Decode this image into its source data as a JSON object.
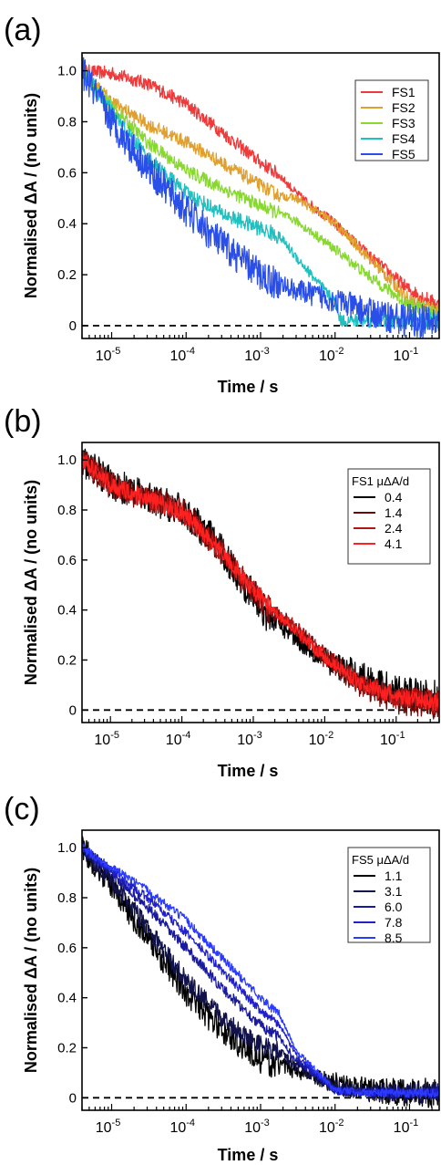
{
  "figure": {
    "panels": [
      {
        "label": "(a)",
        "ylabel": "Normalised ΔA / (no units)",
        "xlabel": "Time / s",
        "legend_title": "",
        "legend_position": "top-right",
        "xscale": "log",
        "xlim": [
          4e-06,
          0.25
        ],
        "ylim": [
          -0.05,
          1.07
        ],
        "yticks": [
          {
            "v": 0,
            "t": "0"
          },
          {
            "v": 0.2,
            "t": "0.2"
          },
          {
            "v": 0.4,
            "t": "0.4"
          },
          {
            "v": 0.6,
            "t": "0.6"
          },
          {
            "v": 0.8,
            "t": "0.8"
          },
          {
            "v": 1.0,
            "t": "1.0"
          }
        ],
        "xticks": [
          {
            "e": -5,
            "t": "10",
            "sup": "-5"
          },
          {
            "e": -4,
            "t": "10",
            "sup": "-4"
          },
          {
            "e": -3,
            "t": "10",
            "sup": "-3"
          },
          {
            "e": -2,
            "t": "10",
            "sup": "-2"
          },
          {
            "e": -1,
            "t": "10",
            "sup": "-1"
          }
        ],
        "zero_line": "dashed"
      },
      {
        "label": "(b)",
        "ylabel": "Normalised ΔA / (no units)",
        "xlabel": "Time / s",
        "legend_title": "FS1 μΔA/d",
        "legend_position": "top-right",
        "xscale": "log",
        "xlim": [
          4e-06,
          0.4
        ],
        "ylim": [
          -0.05,
          1.07
        ],
        "yticks": [
          {
            "v": 0,
            "t": "0"
          },
          {
            "v": 0.2,
            "t": "0.2"
          },
          {
            "v": 0.4,
            "t": "0.4"
          },
          {
            "v": 0.6,
            "t": "0.6"
          },
          {
            "v": 0.8,
            "t": "0.8"
          },
          {
            "v": 1.0,
            "t": "1.0"
          }
        ],
        "xticks": [
          {
            "e": -5,
            "t": "10",
            "sup": "-5"
          },
          {
            "e": -4,
            "t": "10",
            "sup": "-4"
          },
          {
            "e": -3,
            "t": "10",
            "sup": "-3"
          },
          {
            "e": -2,
            "t": "10",
            "sup": "-2"
          },
          {
            "e": -1,
            "t": "10",
            "sup": "-1"
          }
        ],
        "zero_line": "dashed"
      },
      {
        "label": "(c)",
        "ylabel": "Normalised ΔA / (no units)",
        "xlabel": "Time / s",
        "legend_title": "FS5 μΔA/d",
        "legend_position": "top-right",
        "xscale": "log",
        "xlim": [
          4e-06,
          0.25
        ],
        "ylim": [
          -0.05,
          1.07
        ],
        "yticks": [
          {
            "v": 0,
            "t": "0"
          },
          {
            "v": 0.2,
            "t": "0.2"
          },
          {
            "v": 0.4,
            "t": "0.4"
          },
          {
            "v": 0.6,
            "t": "0.6"
          },
          {
            "v": 0.8,
            "t": "0.8"
          },
          {
            "v": 1.0,
            "t": "1.0"
          }
        ],
        "xticks": [
          {
            "e": -5,
            "t": "10",
            "sup": "-5"
          },
          {
            "e": -4,
            "t": "10",
            "sup": "-4"
          },
          {
            "e": -3,
            "t": "10",
            "sup": "-3"
          },
          {
            "e": -2,
            "t": "10",
            "sup": "-2"
          },
          {
            "e": -1,
            "t": "10",
            "sup": "-1"
          }
        ],
        "zero_line": "dashed"
      }
    ]
  },
  "chart_data": [
    {
      "type": "line",
      "title": "(a)",
      "xlabel": "Time / s",
      "ylabel": "Normalised ΔA / (no units)",
      "xscale": "log",
      "xlim": [
        4e-06,
        0.25
      ],
      "ylim": [
        -0.05,
        1.07
      ],
      "grid": false,
      "legend": "top-right",
      "series": [
        {
          "name": "FS1",
          "color": "#ee3a3a",
          "noise": 0.012,
          "x": [
            4e-06,
            1e-05,
            3e-05,
            0.0001,
            0.0003,
            0.001,
            0.0018,
            0.003,
            0.01,
            0.03,
            0.1,
            0.25
          ],
          "y": [
            1.0,
            0.99,
            0.95,
            0.87,
            0.76,
            0.64,
            0.59,
            0.52,
            0.4,
            0.27,
            0.14,
            0.08
          ]
        },
        {
          "name": "FS2",
          "color": "#e0a030",
          "noise": 0.012,
          "x": [
            4e-06,
            1e-05,
            3e-05,
            0.0001,
            0.0003,
            0.001,
            0.0018,
            0.003,
            0.01,
            0.03,
            0.1,
            0.25
          ],
          "y": [
            1.0,
            0.88,
            0.79,
            0.72,
            0.64,
            0.55,
            0.51,
            0.5,
            0.4,
            0.26,
            0.1,
            0.06
          ]
        },
        {
          "name": "FS3",
          "color": "#88d830",
          "noise": 0.012,
          "x": [
            4e-06,
            1e-05,
            3e-05,
            0.0001,
            0.0003,
            0.001,
            0.0018,
            0.003,
            0.01,
            0.03,
            0.1,
            0.25
          ],
          "y": [
            1.0,
            0.86,
            0.72,
            0.61,
            0.54,
            0.47,
            0.44,
            0.41,
            0.3,
            0.19,
            0.08,
            0.05
          ]
        },
        {
          "name": "FS4",
          "color": "#20c0c0",
          "noise": 0.014,
          "x": [
            4e-06,
            1e-05,
            3e-05,
            0.0001,
            0.0003,
            0.001,
            0.0018,
            0.003,
            0.01,
            0.012,
            0.03,
            0.1,
            0.25
          ],
          "y": [
            1.0,
            0.84,
            0.66,
            0.52,
            0.44,
            0.38,
            0.35,
            0.27,
            0.09,
            0.02,
            0.02,
            0.02,
            0.02
          ]
        },
        {
          "name": "FS5",
          "color": "#2a4ee8",
          "noise": 0.03,
          "x": [
            4e-06,
            1e-05,
            3e-05,
            0.0001,
            0.0003,
            0.001,
            0.0018,
            0.003,
            0.01,
            0.03,
            0.1,
            0.25
          ],
          "y": [
            1.0,
            0.8,
            0.62,
            0.45,
            0.32,
            0.2,
            0.16,
            0.14,
            0.1,
            0.05,
            0.02,
            0.01
          ]
        }
      ]
    },
    {
      "type": "line",
      "title": "(b)",
      "xlabel": "Time / s",
      "ylabel": "Normalised ΔA / (no units)",
      "xscale": "log",
      "xlim": [
        4e-06,
        0.4
      ],
      "ylim": [
        -0.05,
        1.07
      ],
      "grid": false,
      "legend": "top-right",
      "legend_title": "FS1 μΔA/d",
      "series": [
        {
          "name": "0.4",
          "color": "#000000",
          "noise": 0.03,
          "x": [
            4e-06,
            1e-05,
            3e-05,
            0.0001,
            0.0003,
            0.001,
            0.0018,
            0.003,
            0.01,
            0.03,
            0.1,
            0.4
          ],
          "y": [
            1.0,
            0.91,
            0.85,
            0.8,
            0.67,
            0.45,
            0.36,
            0.32,
            0.2,
            0.14,
            0.07,
            0.05
          ]
        },
        {
          "name": "1.4",
          "color": "#6b0a0a",
          "noise": 0.025,
          "x": [
            4e-06,
            1e-05,
            3e-05,
            0.0001,
            0.0003,
            0.001,
            0.0018,
            0.003,
            0.01,
            0.03,
            0.1,
            0.4
          ],
          "y": [
            1.0,
            0.9,
            0.85,
            0.8,
            0.66,
            0.47,
            0.39,
            0.35,
            0.21,
            0.1,
            0.04,
            0.02
          ]
        },
        {
          "name": "2.4",
          "color": "#b01818",
          "noise": 0.02,
          "x": [
            4e-06,
            1e-05,
            3e-05,
            0.0001,
            0.0003,
            0.001,
            0.0018,
            0.003,
            0.01,
            0.03,
            0.1,
            0.4
          ],
          "y": [
            1.0,
            0.9,
            0.85,
            0.79,
            0.66,
            0.48,
            0.4,
            0.36,
            0.22,
            0.11,
            0.05,
            0.03
          ]
        },
        {
          "name": "4.1",
          "color": "#ff2020",
          "noise": 0.015,
          "x": [
            4e-06,
            1e-05,
            3e-05,
            0.0001,
            0.0003,
            0.001,
            0.0018,
            0.003,
            0.01,
            0.03,
            0.1,
            0.4
          ],
          "y": [
            1.0,
            0.9,
            0.85,
            0.79,
            0.66,
            0.48,
            0.4,
            0.35,
            0.21,
            0.11,
            0.05,
            0.03
          ]
        }
      ]
    },
    {
      "type": "line",
      "title": "(c)",
      "xlabel": "Time / s",
      "ylabel": "Normalised ΔA / (no units)",
      "xscale": "log",
      "xlim": [
        4e-06,
        0.25
      ],
      "ylim": [
        -0.05,
        1.07
      ],
      "grid": false,
      "legend": "top-right",
      "legend_title": "FS5 μΔA/d",
      "series": [
        {
          "name": "1.1",
          "color": "#000000",
          "noise": 0.025,
          "x": [
            4e-06,
            1e-05,
            3e-05,
            0.0001,
            0.0003,
            0.001,
            0.0018,
            0.003,
            0.01,
            0.03,
            0.1,
            0.25
          ],
          "y": [
            1.0,
            0.85,
            0.64,
            0.42,
            0.27,
            0.15,
            0.13,
            0.11,
            0.06,
            0.03,
            0.02,
            0.02
          ]
        },
        {
          "name": "3.1",
          "color": "#12124a",
          "noise": 0.018,
          "x": [
            4e-06,
            1e-05,
            3e-05,
            0.0001,
            0.0003,
            0.001,
            0.0018,
            0.003,
            0.01,
            0.03,
            0.1,
            0.25
          ],
          "y": [
            1.0,
            0.87,
            0.68,
            0.47,
            0.32,
            0.21,
            0.18,
            0.13,
            0.04,
            0.02,
            0.02,
            0.02
          ]
        },
        {
          "name": "6.0",
          "color": "#1a1aa0",
          "noise": 0.01,
          "x": [
            4e-06,
            1e-05,
            3e-05,
            0.0001,
            0.0003,
            0.001,
            0.0018,
            0.003,
            0.01,
            0.03,
            0.1,
            0.25
          ],
          "y": [
            1.0,
            0.9,
            0.76,
            0.6,
            0.44,
            0.29,
            0.24,
            0.15,
            0.03,
            0.02,
            0.02,
            0.02
          ]
        },
        {
          "name": "7.8",
          "color": "#2020cc",
          "noise": 0.008,
          "x": [
            4e-06,
            1e-05,
            3e-05,
            0.0001,
            0.0003,
            0.001,
            0.0018,
            0.003,
            0.01,
            0.03,
            0.1,
            0.25
          ],
          "y": [
            1.0,
            0.91,
            0.8,
            0.66,
            0.51,
            0.35,
            0.29,
            0.17,
            0.03,
            0.02,
            0.02,
            0.02
          ]
        },
        {
          "name": "8.5",
          "color": "#2a3aff",
          "noise": 0.008,
          "x": [
            4e-06,
            1e-05,
            3e-05,
            0.0001,
            0.0003,
            0.001,
            0.0018,
            0.003,
            0.01,
            0.03,
            0.1,
            0.25
          ],
          "y": [
            1.0,
            0.92,
            0.83,
            0.71,
            0.56,
            0.4,
            0.33,
            0.19,
            0.03,
            0.02,
            0.02,
            0.02
          ]
        }
      ]
    }
  ]
}
